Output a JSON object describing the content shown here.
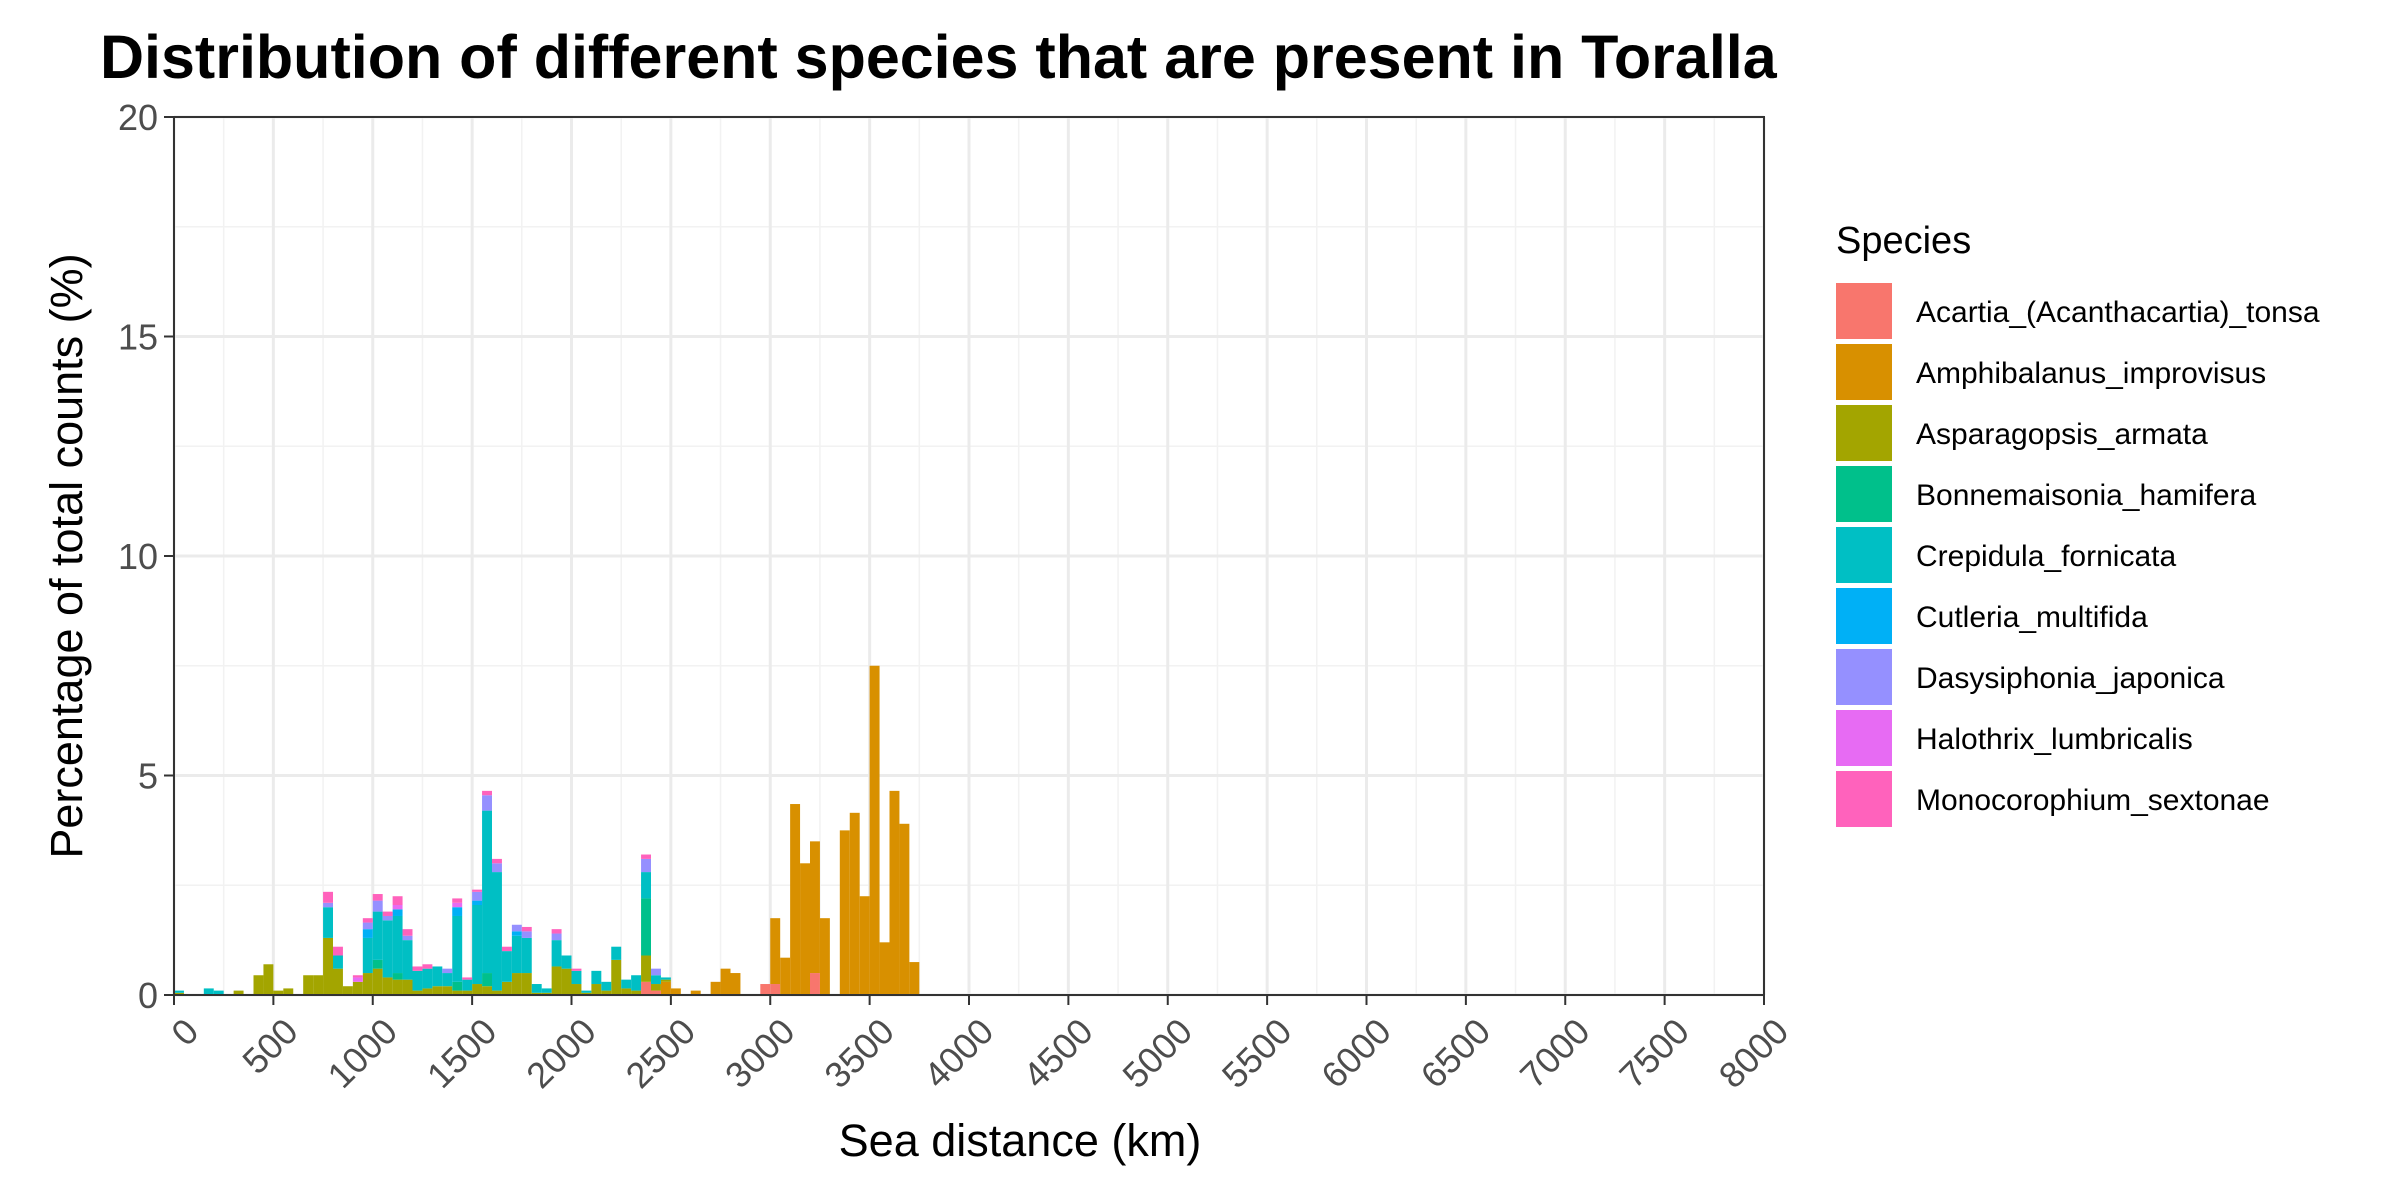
{
  "chart_data": {
    "type": "bar",
    "stacked": true,
    "title": "Distribution of different species that are present in Toralla",
    "xlabel": "Sea distance (km)",
    "ylabel": "Percentage of total counts (%)",
    "xlim": [
      0,
      8000
    ],
    "ylim": [
      0,
      20
    ],
    "x_ticks": [
      "0",
      "500",
      "1000",
      "1500",
      "2000",
      "2500",
      "3000",
      "3500",
      "4000",
      "4500",
      "5000",
      "5500",
      "6000",
      "6500",
      "7000",
      "7500",
      "8000"
    ],
    "y_ticks": [
      "0",
      "5",
      "10",
      "15",
      "20"
    ],
    "bin_width": 50,
    "grid": true,
    "legend_title": "Species",
    "legend_position": "right",
    "series": [
      {
        "name": "Acartia_(Acanthacartia)_tonsa",
        "color": "#F8766D",
        "x": [
          2375,
          2425,
          2975,
          3025,
          3225
        ],
        "values": [
          0.3,
          0.1,
          0.25,
          0.25,
          0.5
        ]
      },
      {
        "name": "Amphibalanus_improvisus",
        "color": "#D89000",
        "x": [
          2475,
          2525,
          2625,
          2725,
          2775,
          2825,
          3025,
          3075,
          3125,
          3175,
          3225,
          3275,
          3375,
          3425,
          3475,
          3525,
          3575,
          3625,
          3675,
          3725
        ],
        "values": [
          0.3,
          0.15,
          0.1,
          0.3,
          0.6,
          0.5,
          1.5,
          0.85,
          4.35,
          3.0,
          3.0,
          1.75,
          3.75,
          4.15,
          2.25,
          7.5,
          1.2,
          4.65,
          3.9,
          0.75
        ]
      },
      {
        "name": "Asparagopsis_armata",
        "color": "#A3A500",
        "x": [
          25,
          325,
          425,
          475,
          525,
          575,
          675,
          725,
          775,
          825,
          875,
          925,
          975,
          1025,
          1075,
          1125,
          1175,
          1225,
          1275,
          1325,
          1375,
          1425,
          1475,
          1525,
          1575,
          1625,
          1675,
          1725,
          1775,
          1825,
          1875,
          1925,
          1975,
          2025,
          2075,
          2125,
          2175,
          2225,
          2275,
          2325,
          2375,
          2425,
          2475
        ],
        "values": [
          0.05,
          0.1,
          0.45,
          0.7,
          0.1,
          0.15,
          0.45,
          0.45,
          1.3,
          0.6,
          0.2,
          0.3,
          0.5,
          0.6,
          0.4,
          0.35,
          0.35,
          0.1,
          0.15,
          0.2,
          0.2,
          0.1,
          0.1,
          0.25,
          0.2,
          0.1,
          0.3,
          0.5,
          0.5,
          0.05,
          0.05,
          0.65,
          0.6,
          0.25,
          0.05,
          0.25,
          0.1,
          0.8,
          0.15,
          0.1,
          0.6,
          0.15,
          0.05
        ]
      },
      {
        "name": "Bonnemaisonia_hamifera",
        "color": "#00C08B",
        "x": [
          1025,
          1125,
          1425,
          1575,
          2375
        ],
        "values": [
          0.2,
          0.15,
          0.2,
          0.3,
          1.3
        ]
      },
      {
        "name": "Crepidula_fornicata",
        "color": "#00BFC4",
        "x": [
          25,
          175,
          225,
          775,
          825,
          975,
          1025,
          1075,
          1125,
          1175,
          1225,
          1275,
          1325,
          1375,
          1425,
          1475,
          1525,
          1575,
          1625,
          1675,
          1725,
          1775,
          1825,
          1875,
          1925,
          1975,
          2025,
          2075,
          2125,
          2175,
          2225,
          2275,
          2325,
          2375,
          2425,
          2475
        ],
        "values": [
          0.05,
          0.15,
          0.1,
          0.7,
          0.3,
          0.8,
          1.1,
          1.3,
          1.3,
          0.9,
          0.45,
          0.45,
          0.45,
          0.3,
          1.5,
          0.25,
          1.8,
          3.7,
          2.7,
          0.7,
          0.85,
          0.8,
          0.2,
          0.1,
          0.6,
          0.3,
          0.3,
          0.05,
          0.3,
          0.2,
          0.3,
          0.2,
          0.35,
          0.6,
          0.2,
          0.05
        ]
      },
      {
        "name": "Cutleria_multifida",
        "color": "#00B0F6",
        "x": [
          975,
          1125,
          1425,
          1525,
          1725
        ],
        "values": [
          0.2,
          0.15,
          0.2,
          0.1,
          0.1
        ]
      },
      {
        "name": "Dasysiphonia_japonica",
        "color": "#9590FF",
        "x": [
          775,
          975,
          1025,
          1075,
          1175,
          1375,
          1525,
          1575,
          1625,
          1725,
          1775,
          1925,
          2375,
          2425
        ],
        "values": [
          0.1,
          0.15,
          0.25,
          0.1,
          0.1,
          0.1,
          0.2,
          0.35,
          0.2,
          0.15,
          0.15,
          0.15,
          0.3,
          0.15
        ]
      },
      {
        "name": "Halothrix_lumbricalis",
        "color": "#E76BF3",
        "x": [
          925,
          1125,
          1425
        ],
        "values": [
          0.1,
          0.1,
          0.1
        ]
      },
      {
        "name": "Monocorophium_sextonae",
        "color": "#FF62BC",
        "x": [
          775,
          825,
          925,
          975,
          1025,
          1075,
          1125,
          1175,
          1225,
          1275,
          1425,
          1475,
          1525,
          1575,
          1625,
          1675,
          1775,
          1925,
          2025,
          2375
        ],
        "values": [
          0.25,
          0.2,
          0.05,
          0.1,
          0.15,
          0.1,
          0.2,
          0.15,
          0.1,
          0.1,
          0.1,
          0.05,
          0.05,
          0.1,
          0.1,
          0.1,
          0.1,
          0.1,
          0.05,
          0.1
        ]
      }
    ]
  }
}
